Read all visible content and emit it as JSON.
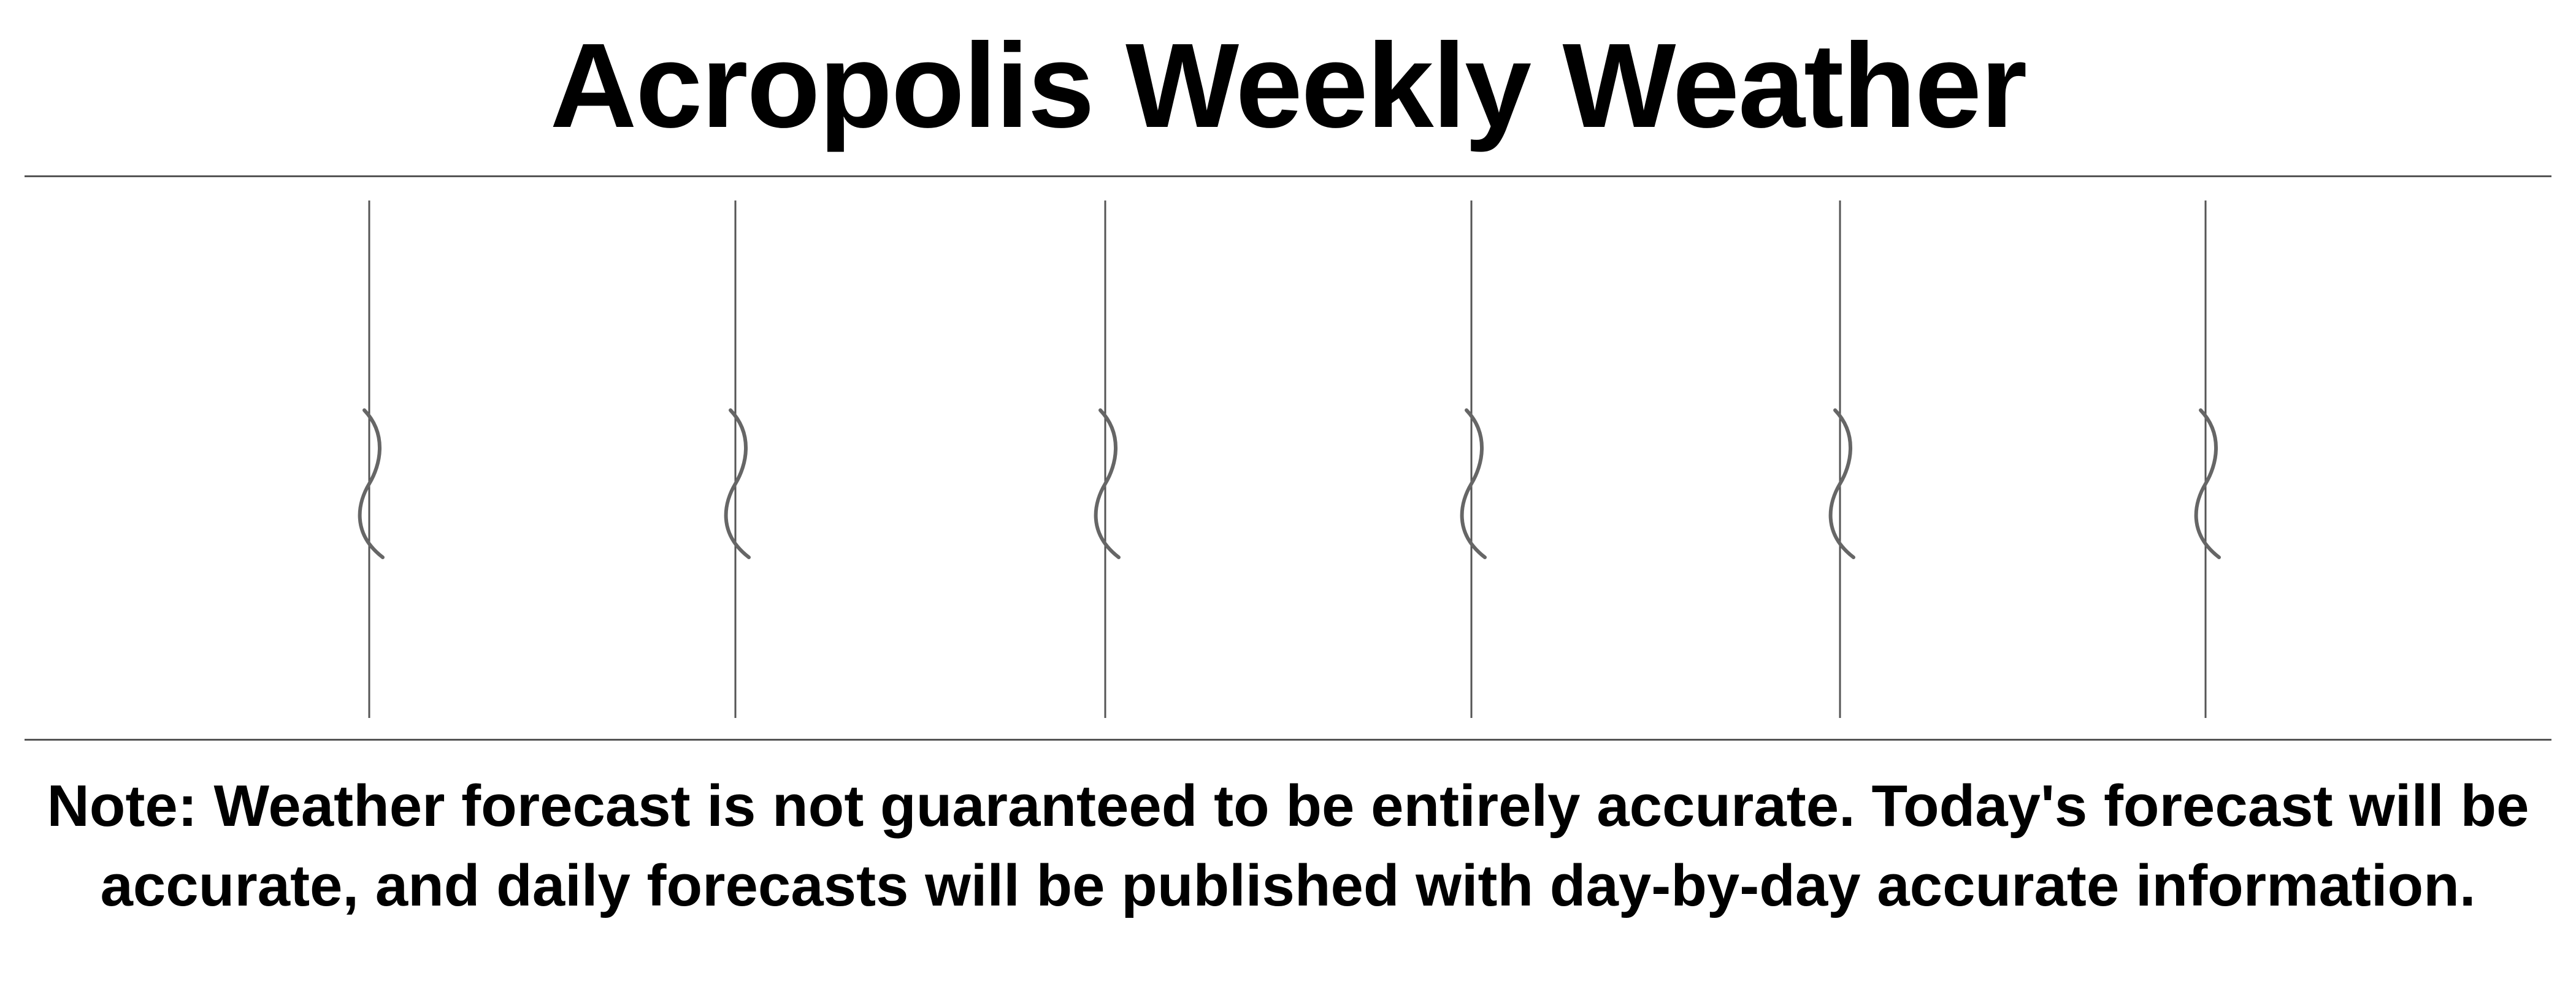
{
  "header": {
    "title": "Acropolis Weekly Weather"
  },
  "divider_count": 6,
  "footer": {
    "note": "Note: Weather forecast is not guaranteed to be entirely accurate. Today's forecast will be accurate, and daily forecasts will be published with day-by-day accurate information."
  },
  "colors": {
    "text": "#000000",
    "rule": "#555555",
    "divider": "#555555",
    "squiggle": "#666666"
  }
}
